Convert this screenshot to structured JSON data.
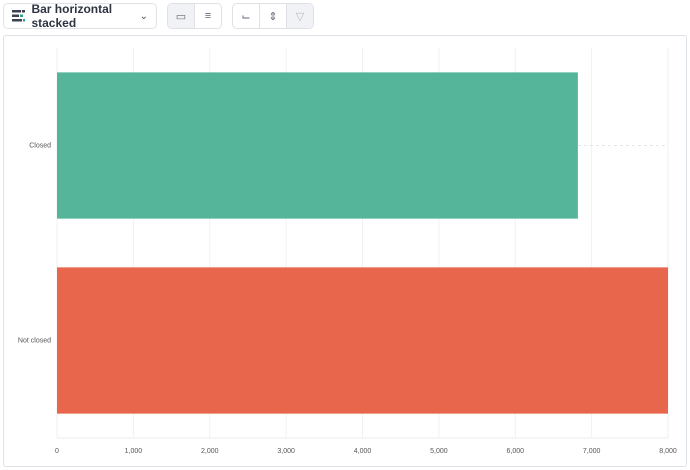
{
  "toolbar": {
    "chart_type_label": "Bar horizontal stacked",
    "icons": [
      "bar-stacked-icon",
      "chevron-down-icon",
      "paint-brush-icon",
      "list-settings-icon",
      "x-axis-icon",
      "y-axis-icon",
      "filter-funnel-icon"
    ]
  },
  "chart_data": {
    "type": "bar",
    "orientation": "horizontal",
    "stacked": true,
    "categories": [
      "Closed",
      "Not closed"
    ],
    "values": [
      6820,
      8000
    ],
    "colors": [
      "#55b59b",
      "#e8664c"
    ],
    "xlim": [
      0,
      8000
    ],
    "xticks": [
      "0",
      "1,000",
      "2,000",
      "3,000",
      "4,000",
      "5,000",
      "6,000",
      "7,000",
      "8,000"
    ],
    "grid": true,
    "legend": "none"
  }
}
